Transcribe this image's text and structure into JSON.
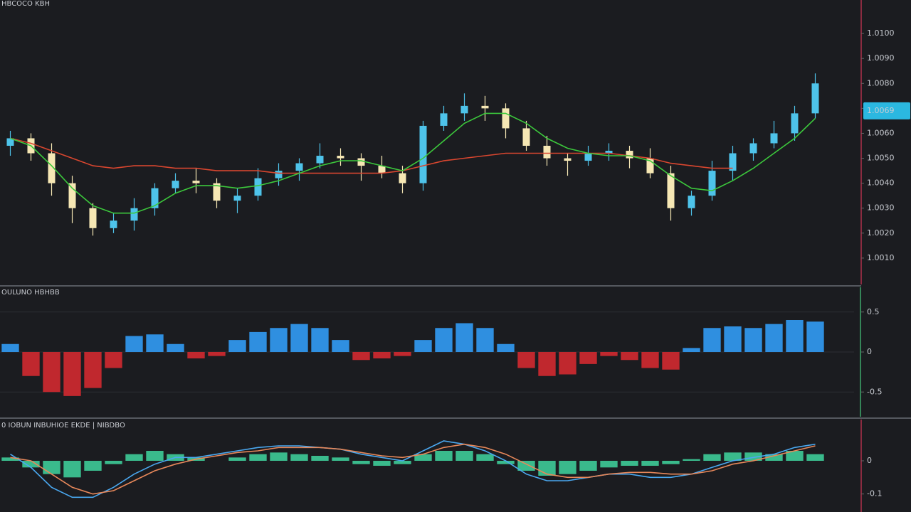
{
  "chart_data": [
    {
      "type": "candlestick",
      "title": "HBCOCO KBH",
      "open": [
        1.0055,
        1.0058,
        1.0052,
        1.004,
        1.003,
        1.0022,
        1.0025,
        1.003,
        1.0038,
        1.0041,
        1.004,
        1.0033,
        1.0035,
        1.0042,
        1.0045,
        1.0048,
        1.0051,
        1.005,
        1.0047,
        1.0044,
        1.004,
        1.0063,
        1.0068,
        1.0071,
        1.007,
        1.0062,
        1.0055,
        1.005,
        1.0049,
        1.0052,
        1.0053,
        1.005,
        1.0044,
        1.003,
        1.0035,
        1.0045,
        1.0052,
        1.0056,
        1.006,
        1.0068
      ],
      "high": [
        1.0061,
        1.006,
        1.0056,
        1.0043,
        1.0032,
        1.0028,
        1.0034,
        1.004,
        1.0044,
        1.0046,
        1.0042,
        1.0038,
        1.0046,
        1.0048,
        1.005,
        1.0056,
        1.0054,
        1.0052,
        1.0051,
        1.0047,
        1.0065,
        1.0071,
        1.0076,
        1.0075,
        1.0072,
        1.0065,
        1.0059,
        1.0052,
        1.0055,
        1.0056,
        1.0055,
        1.0054,
        1.0047,
        1.0037,
        1.0049,
        1.0055,
        1.0058,
        1.0065,
        1.0071,
        1.0084
      ],
      "low": [
        1.0051,
        1.0049,
        1.0035,
        1.0024,
        1.0019,
        1.002,
        1.0021,
        1.0027,
        1.0036,
        1.0036,
        1.003,
        1.0028,
        1.0033,
        1.0039,
        1.0041,
        1.0046,
        1.0047,
        1.0041,
        1.0042,
        1.0036,
        1.0037,
        1.0061,
        1.0065,
        1.0065,
        1.0058,
        1.0053,
        1.0047,
        1.0043,
        1.0047,
        1.0049,
        1.0046,
        1.0042,
        1.0025,
        1.0027,
        1.0033,
        1.0041,
        1.0049,
        1.0054,
        1.0057,
        1.0066
      ],
      "close": [
        1.0058,
        1.0052,
        1.004,
        1.003,
        1.0022,
        1.0025,
        1.003,
        1.0038,
        1.0041,
        1.004,
        1.0033,
        1.0035,
        1.0042,
        1.0045,
        1.0048,
        1.0051,
        1.005,
        1.0047,
        1.0044,
        1.004,
        1.0063,
        1.0068,
        1.0071,
        1.007,
        1.0062,
        1.0055,
        1.005,
        1.0049,
        1.0052,
        1.0053,
        1.005,
        1.0044,
        1.003,
        1.0035,
        1.0045,
        1.0052,
        1.0056,
        1.006,
        1.0068,
        1.008
      ],
      "up_color": "#4ec3ea",
      "down_color": "#f6e7b4",
      "lines": [
        {
          "color": "#d9462f",
          "values": [
            1.0058,
            1.0056,
            1.0053,
            1.005,
            1.0047,
            1.0046,
            1.0047,
            1.0047,
            1.0046,
            1.0046,
            1.0045,
            1.0045,
            1.0045,
            1.0044,
            1.0044,
            1.0044,
            1.0044,
            1.0044,
            1.0044,
            1.0045,
            1.0047,
            1.0049,
            1.005,
            1.0051,
            1.0052,
            1.0052,
            1.0052,
            1.0052,
            1.0052,
            1.0052,
            1.0051,
            1.005,
            1.0048,
            1.0047,
            1.0046,
            1.0046,
            null,
            null,
            null,
            null
          ]
        },
        {
          "color": "#3cc83c",
          "values": [
            1.0058,
            1.0055,
            1.0047,
            1.0038,
            1.0031,
            1.0028,
            1.0028,
            1.0031,
            1.0036,
            1.0039,
            1.0039,
            1.0038,
            1.0039,
            1.0041,
            1.0044,
            1.0047,
            1.0049,
            1.0049,
            1.0047,
            1.0045,
            1.005,
            1.0057,
            1.0064,
            1.0068,
            1.0068,
            1.0064,
            1.0058,
            1.0054,
            1.0052,
            1.0051,
            1.0051,
            1.0049,
            1.0043,
            1.0038,
            1.0037,
            1.0041,
            1.0046,
            1.0052,
            1.0058,
            1.0066
          ]
        }
      ],
      "ylim": [
        1.0,
        1.011
      ],
      "yticks": [
        {
          "value": 1.001,
          "label": "1.0010"
        },
        {
          "value": 1.002,
          "label": "1.0020"
        },
        {
          "value": 1.003,
          "label": "1.0030"
        },
        {
          "value": 1.004,
          "label": "1.0040"
        },
        {
          "value": 1.005,
          "label": "1.0050"
        },
        {
          "value": 1.006,
          "label": "1.0060"
        },
        {
          "value": 1.007,
          "label": "1.0070"
        },
        {
          "value": 1.008,
          "label": "1.0080"
        },
        {
          "value": 1.009,
          "label": "1.0090"
        },
        {
          "value": 1.01,
          "label": "1.0100"
        }
      ],
      "price_tag": {
        "value": 1.0069,
        "label": "1.0069"
      },
      "tag_color": "#2bb8e0",
      "grid": false
    },
    {
      "type": "bar",
      "title": "OULUNO HBHBB",
      "values": [
        0.1,
        -0.3,
        -0.5,
        -0.55,
        -0.45,
        -0.2,
        0.2,
        0.22,
        0.1,
        -0.08,
        -0.05,
        0.15,
        0.25,
        0.3,
        0.35,
        0.3,
        0.15,
        -0.1,
        -0.08,
        -0.05,
        0.15,
        0.3,
        0.36,
        0.3,
        0.1,
        -0.2,
        -0.3,
        -0.28,
        -0.15,
        -0.05,
        -0.1,
        -0.2,
        -0.22,
        0.05,
        0.3,
        0.32,
        0.3,
        0.35,
        0.4,
        0.38
      ],
      "pos_color": "#2f8fe0",
      "neg_color": "#c0282e",
      "ylim": [
        -0.8,
        0.8
      ],
      "yticks": [
        -0.5,
        0,
        0.5
      ],
      "grid": true
    },
    {
      "type": "macd",
      "title": "0 IOBUN INBUHIOE EKDE | NIBDBO",
      "values": [
        0.01,
        -0.02,
        -0.04,
        -0.05,
        -0.03,
        -0.01,
        0.02,
        0.03,
        0.02,
        0.01,
        0,
        0.01,
        0.02,
        0.025,
        0.02,
        0.015,
        0.01,
        -0.01,
        -0.015,
        -0.01,
        0.02,
        0.03,
        0.03,
        0.02,
        -0.01,
        -0.03,
        -0.045,
        -0.04,
        -0.03,
        -0.02,
        -0.015,
        -0.015,
        -0.01,
        0.005,
        0.02,
        0.025,
        0.025,
        0.02,
        0.03,
        0.02
      ],
      "bar_color": "#3fd6a0",
      "lines": [
        {
          "color": "#4aa8f0",
          "values": [
            0.02,
            -0.02,
            -0.08,
            -0.11,
            -0.11,
            -0.08,
            -0.04,
            -0.01,
            0.01,
            0.01,
            0.02,
            0.03,
            0.04,
            0.045,
            0.045,
            0.04,
            0.035,
            0.02,
            0.01,
            0.0,
            0.03,
            0.06,
            0.05,
            0.03,
            0,
            -0.04,
            -0.06,
            -0.06,
            -0.05,
            -0.04,
            -0.04,
            -0.05,
            -0.05,
            -0.04,
            -0.02,
            0.0,
            0.01,
            0.02,
            0.04,
            0.05
          ]
        },
        {
          "color": "#e8885a",
          "values": [
            0.01,
            0,
            -0.04,
            -0.08,
            -0.1,
            -0.09,
            -0.06,
            -0.03,
            -0.01,
            0.005,
            0.015,
            0.025,
            0.03,
            0.04,
            0.04,
            0.04,
            0.035,
            0.025,
            0.015,
            0.01,
            0.02,
            0.04,
            0.05,
            0.04,
            0.02,
            -0.01,
            -0.04,
            -0.05,
            -0.05,
            -0.04,
            -0.035,
            -0.035,
            -0.04,
            -0.04,
            -0.03,
            -0.01,
            0.0,
            0.015,
            0.03,
            0.045
          ]
        }
      ],
      "ylim": [
        -0.15,
        0.12
      ],
      "yticks": [
        -0.1,
        0
      ],
      "grid": false
    }
  ]
}
